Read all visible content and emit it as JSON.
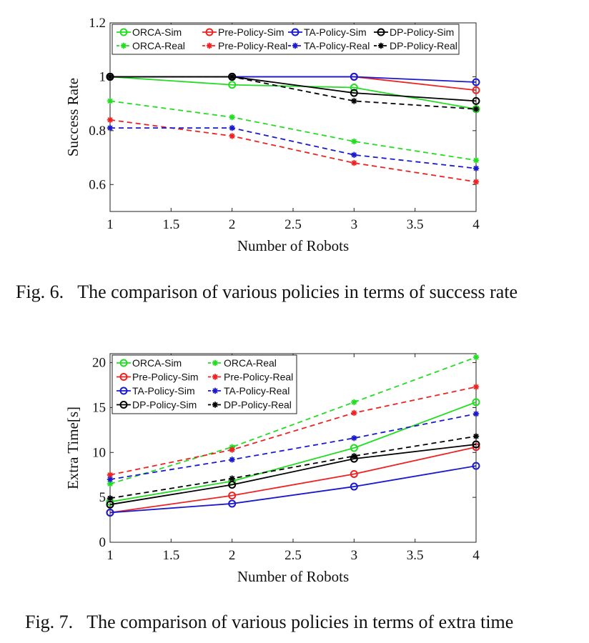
{
  "chart_data": [
    {
      "type": "line",
      "caption": "Fig. 6.   The comparison of various policies in terms of success rate",
      "xlabel": "Number of Robots",
      "ylabel": "Success Rate",
      "xlim": [
        1,
        4
      ],
      "ylim": [
        0.5,
        1.2
      ],
      "xticks": [
        "1",
        "1.5",
        "2",
        "2.5",
        "3",
        "3.5",
        "4"
      ],
      "yticks": [
        "0.6",
        "0.8",
        "1",
        "1.2"
      ],
      "x": [
        1,
        2,
        3,
        4
      ],
      "legend_position": "top",
      "legend_columns": 4,
      "series": [
        {
          "name": "ORCA-Sim",
          "color": "#22dd22",
          "style": "solid",
          "marker": "circle",
          "values": [
            1.0,
            0.97,
            0.96,
            0.88
          ]
        },
        {
          "name": "Pre-Policy-Sim",
          "color": "#ee2222",
          "style": "solid",
          "marker": "circle",
          "values": [
            1.0,
            1.0,
            1.0,
            0.95
          ]
        },
        {
          "name": "TA-Policy-Sim",
          "color": "#1a1acc",
          "style": "solid",
          "marker": "circle",
          "values": [
            1.0,
            1.0,
            1.0,
            0.98
          ]
        },
        {
          "name": "DP-Policy-Sim",
          "color": "#000000",
          "style": "solid",
          "marker": "circle",
          "values": [
            1.0,
            1.0,
            0.94,
            0.91
          ]
        },
        {
          "name": "ORCA-Real",
          "color": "#22dd22",
          "style": "dashed",
          "marker": "star",
          "values": [
            0.91,
            0.85,
            0.76,
            0.69
          ]
        },
        {
          "name": "Pre-Policy-Real",
          "color": "#ee2222",
          "style": "dashed",
          "marker": "star",
          "values": [
            0.84,
            0.78,
            0.68,
            0.61
          ]
        },
        {
          "name": "TA-Policy-Real",
          "color": "#1a1acc",
          "style": "dashed",
          "marker": "star",
          "values": [
            0.81,
            0.81,
            0.71,
            0.66
          ]
        },
        {
          "name": "DP-Policy-Real",
          "color": "#000000",
          "style": "dashed",
          "marker": "star",
          "values": [
            1.0,
            1.0,
            0.91,
            0.88
          ]
        }
      ]
    },
    {
      "type": "line",
      "caption": "Fig. 7.   The comparison of various policies in terms of extra time",
      "xlabel": "Number of Robots",
      "ylabel": "Extra Time[s]",
      "xlim": [
        1,
        4
      ],
      "ylim": [
        0,
        21
      ],
      "xticks": [
        "1",
        "1.5",
        "2",
        "2.5",
        "3",
        "3.5",
        "4"
      ],
      "yticks": [
        "0",
        "5",
        "10",
        "15",
        "20"
      ],
      "x": [
        1,
        2,
        3,
        4
      ],
      "legend_position": "top-left",
      "legend_columns": 2,
      "series": [
        {
          "name": "ORCA-Sim",
          "color": "#22dd22",
          "style": "solid",
          "marker": "circle",
          "values": [
            4.5,
            6.8,
            10.5,
            15.6
          ]
        },
        {
          "name": "ORCA-Real",
          "color": "#22dd22",
          "style": "dashed",
          "marker": "star",
          "values": [
            6.5,
            10.6,
            15.6,
            20.6
          ]
        },
        {
          "name": "Pre-Policy-Sim",
          "color": "#ee2222",
          "style": "solid",
          "marker": "circle",
          "values": [
            3.3,
            5.2,
            7.6,
            10.6
          ]
        },
        {
          "name": "Pre-Policy-Real",
          "color": "#ee2222",
          "style": "dashed",
          "marker": "star",
          "values": [
            7.5,
            10.3,
            14.4,
            17.3
          ]
        },
        {
          "name": "TA-Policy-Sim",
          "color": "#1a1acc",
          "style": "solid",
          "marker": "circle",
          "values": [
            3.3,
            4.3,
            6.2,
            8.5
          ]
        },
        {
          "name": "TA-Policy-Real",
          "color": "#1a1acc",
          "style": "dashed",
          "marker": "star",
          "values": [
            7.0,
            9.2,
            11.6,
            14.3
          ]
        },
        {
          "name": "DP-Policy-Sim",
          "color": "#000000",
          "style": "solid",
          "marker": "circle",
          "values": [
            4.2,
            6.4,
            9.3,
            10.9
          ]
        },
        {
          "name": "DP-Policy-Real",
          "color": "#000000",
          "style": "dashed",
          "marker": "star",
          "values": [
            4.9,
            7.1,
            9.6,
            11.8
          ]
        }
      ]
    }
  ]
}
